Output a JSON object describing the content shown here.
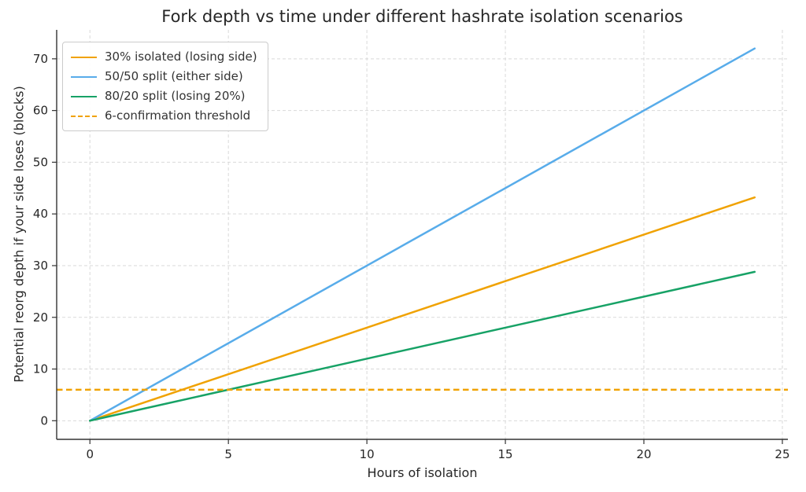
{
  "chart_data": {
    "type": "line",
    "title": "Fork depth vs time under different hashrate isolation scenarios",
    "xlabel": "Hours of isolation",
    "ylabel": "Potential reorg depth if your side loses (blocks)",
    "xlim": [
      -1.2,
      25.2
    ],
    "ylim": [
      -3.6,
      75.6
    ],
    "x_ticks": [
      0,
      5,
      10,
      15,
      20,
      25
    ],
    "y_ticks": [
      0,
      10,
      20,
      30,
      40,
      50,
      60,
      70
    ],
    "grid": true,
    "grid_style": "dashed",
    "legend_position": "upper-left",
    "series": [
      {
        "name": "30% isolated (losing side)",
        "color": "#F0A202",
        "dash": false,
        "x": [
          0,
          24
        ],
        "y": [
          0,
          43.2
        ]
      },
      {
        "name": "50/50 split (either side)",
        "color": "#58ACEA",
        "dash": false,
        "x": [
          0,
          24
        ],
        "y": [
          0,
          72
        ]
      },
      {
        "name": "80/20 split (losing 20%)",
        "color": "#17A266",
        "dash": false,
        "x": [
          0,
          24
        ],
        "y": [
          0,
          28.8
        ]
      },
      {
        "name": "6-confirmation threshold",
        "color": "#F0A202",
        "dash": true,
        "hline": 6
      }
    ]
  },
  "colors": {
    "grid": "#D9D9D9",
    "spine": "#333333",
    "tick_label": "#262626",
    "title": "#262626",
    "background": "#FFFFFF"
  }
}
